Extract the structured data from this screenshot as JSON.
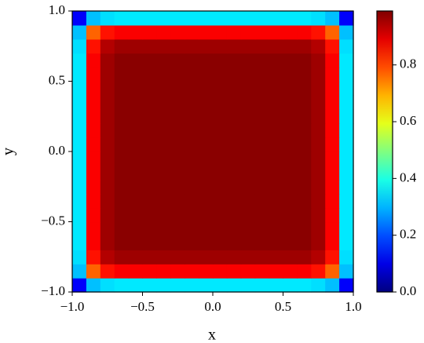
{
  "chart_data": {
    "type": "heatmap",
    "colormap": "jet",
    "xlabel": "x",
    "ylabel": "y",
    "x": [
      -0.95,
      -0.85,
      -0.75,
      -0.65,
      -0.55,
      -0.45,
      -0.35,
      -0.25,
      -0.15,
      -0.05,
      0.05,
      0.15,
      0.25,
      0.35,
      0.45,
      0.55,
      0.65,
      0.75,
      0.85,
      0.95
    ],
    "y": [
      -0.95,
      -0.85,
      -0.75,
      -0.65,
      -0.55,
      -0.45,
      -0.35,
      -0.25,
      -0.15,
      -0.05,
      0.05,
      0.15,
      0.25,
      0.35,
      0.45,
      0.55,
      0.65,
      0.75,
      0.85,
      0.95
    ],
    "z": [
      [
        0.12,
        0.31,
        0.34,
        0.35,
        0.35,
        0.35,
        0.35,
        0.35,
        0.35,
        0.35,
        0.35,
        0.35,
        0.35,
        0.35,
        0.35,
        0.35,
        0.35,
        0.34,
        0.31,
        0.12
      ],
      [
        0.31,
        0.77,
        0.85,
        0.87,
        0.87,
        0.87,
        0.87,
        0.87,
        0.87,
        0.87,
        0.87,
        0.87,
        0.87,
        0.87,
        0.87,
        0.87,
        0.87,
        0.85,
        0.77,
        0.31
      ],
      [
        0.34,
        0.85,
        0.94,
        0.96,
        0.96,
        0.96,
        0.96,
        0.96,
        0.96,
        0.96,
        0.96,
        0.96,
        0.96,
        0.96,
        0.96,
        0.96,
        0.96,
        0.94,
        0.85,
        0.34
      ],
      [
        0.35,
        0.87,
        0.96,
        0.98,
        0.98,
        0.98,
        0.98,
        0.98,
        0.98,
        0.98,
        0.98,
        0.98,
        0.98,
        0.98,
        0.98,
        0.98,
        0.98,
        0.96,
        0.87,
        0.35
      ],
      [
        0.35,
        0.87,
        0.96,
        0.98,
        0.98,
        0.98,
        0.98,
        0.98,
        0.98,
        0.98,
        0.98,
        0.98,
        0.98,
        0.98,
        0.98,
        0.98,
        0.98,
        0.96,
        0.87,
        0.35
      ],
      [
        0.35,
        0.87,
        0.96,
        0.98,
        0.98,
        0.98,
        0.98,
        0.98,
        0.98,
        0.98,
        0.98,
        0.98,
        0.98,
        0.98,
        0.98,
        0.98,
        0.98,
        0.96,
        0.87,
        0.35
      ],
      [
        0.35,
        0.87,
        0.96,
        0.98,
        0.98,
        0.98,
        0.98,
        0.98,
        0.98,
        0.98,
        0.98,
        0.98,
        0.98,
        0.98,
        0.98,
        0.98,
        0.98,
        0.96,
        0.87,
        0.35
      ],
      [
        0.35,
        0.87,
        0.96,
        0.98,
        0.98,
        0.98,
        0.98,
        0.98,
        0.98,
        0.98,
        0.98,
        0.98,
        0.98,
        0.98,
        0.98,
        0.98,
        0.98,
        0.96,
        0.87,
        0.35
      ],
      [
        0.35,
        0.87,
        0.96,
        0.98,
        0.98,
        0.98,
        0.98,
        0.98,
        0.98,
        0.98,
        0.98,
        0.98,
        0.98,
        0.98,
        0.98,
        0.98,
        0.98,
        0.96,
        0.87,
        0.35
      ],
      [
        0.35,
        0.87,
        0.96,
        0.98,
        0.98,
        0.98,
        0.98,
        0.98,
        0.98,
        0.98,
        0.98,
        0.98,
        0.98,
        0.98,
        0.98,
        0.98,
        0.98,
        0.96,
        0.87,
        0.35
      ],
      [
        0.35,
        0.87,
        0.96,
        0.98,
        0.98,
        0.98,
        0.98,
        0.98,
        0.98,
        0.98,
        0.98,
        0.98,
        0.98,
        0.98,
        0.98,
        0.98,
        0.98,
        0.96,
        0.87,
        0.35
      ],
      [
        0.35,
        0.87,
        0.96,
        0.98,
        0.98,
        0.98,
        0.98,
        0.98,
        0.98,
        0.98,
        0.98,
        0.98,
        0.98,
        0.98,
        0.98,
        0.98,
        0.98,
        0.96,
        0.87,
        0.35
      ],
      [
        0.35,
        0.87,
        0.96,
        0.98,
        0.98,
        0.98,
        0.98,
        0.98,
        0.98,
        0.98,
        0.98,
        0.98,
        0.98,
        0.98,
        0.98,
        0.98,
        0.98,
        0.96,
        0.87,
        0.35
      ],
      [
        0.35,
        0.87,
        0.96,
        0.98,
        0.98,
        0.98,
        0.98,
        0.98,
        0.98,
        0.98,
        0.98,
        0.98,
        0.98,
        0.98,
        0.98,
        0.98,
        0.98,
        0.96,
        0.87,
        0.35
      ],
      [
        0.35,
        0.87,
        0.96,
        0.98,
        0.98,
        0.98,
        0.98,
        0.98,
        0.98,
        0.98,
        0.98,
        0.98,
        0.98,
        0.98,
        0.98,
        0.98,
        0.98,
        0.96,
        0.87,
        0.35
      ],
      [
        0.35,
        0.87,
        0.96,
        0.98,
        0.98,
        0.98,
        0.98,
        0.98,
        0.98,
        0.98,
        0.98,
        0.98,
        0.98,
        0.98,
        0.98,
        0.98,
        0.98,
        0.96,
        0.87,
        0.35
      ],
      [
        0.35,
        0.87,
        0.96,
        0.98,
        0.98,
        0.98,
        0.98,
        0.98,
        0.98,
        0.98,
        0.98,
        0.98,
        0.98,
        0.98,
        0.98,
        0.98,
        0.98,
        0.96,
        0.87,
        0.35
      ],
      [
        0.34,
        0.85,
        0.94,
        0.96,
        0.96,
        0.96,
        0.96,
        0.96,
        0.96,
        0.96,
        0.96,
        0.96,
        0.96,
        0.96,
        0.96,
        0.96,
        0.96,
        0.94,
        0.85,
        0.34
      ],
      [
        0.31,
        0.77,
        0.85,
        0.87,
        0.87,
        0.87,
        0.87,
        0.87,
        0.87,
        0.87,
        0.87,
        0.87,
        0.87,
        0.87,
        0.87,
        0.87,
        0.87,
        0.85,
        0.77,
        0.31
      ],
      [
        0.12,
        0.31,
        0.34,
        0.35,
        0.35,
        0.35,
        0.35,
        0.35,
        0.35,
        0.35,
        0.35,
        0.35,
        0.35,
        0.35,
        0.35,
        0.35,
        0.35,
        0.34,
        0.31,
        0.12
      ]
    ],
    "xlim": [
      -1.0,
      1.0
    ],
    "ylim": [
      -1.0,
      1.0
    ],
    "xticks": [
      {
        "value": -1.0,
        "label": "−1.0"
      },
      {
        "value": -0.5,
        "label": "−0.5"
      },
      {
        "value": 0.0,
        "label": "0.0"
      },
      {
        "value": 0.5,
        "label": "0.5"
      },
      {
        "value": 1.0,
        "label": "1.0"
      }
    ],
    "yticks": [
      {
        "value": -1.0,
        "label": "−1.0"
      },
      {
        "value": -0.5,
        "label": "−0.5"
      },
      {
        "value": 0.0,
        "label": "0.0"
      },
      {
        "value": 0.5,
        "label": "0.5"
      },
      {
        "value": 1.0,
        "label": "1.0"
      }
    ],
    "clim": [
      0,
      0.99
    ],
    "cticks": [
      {
        "value": 0,
        "label": "0.0"
      },
      {
        "value": 0.2,
        "label": "0.2"
      },
      {
        "value": 0.4,
        "label": "0.4"
      },
      {
        "value": 0.6,
        "label": "0.6"
      },
      {
        "value": 0.8,
        "label": "0.8"
      }
    ]
  }
}
